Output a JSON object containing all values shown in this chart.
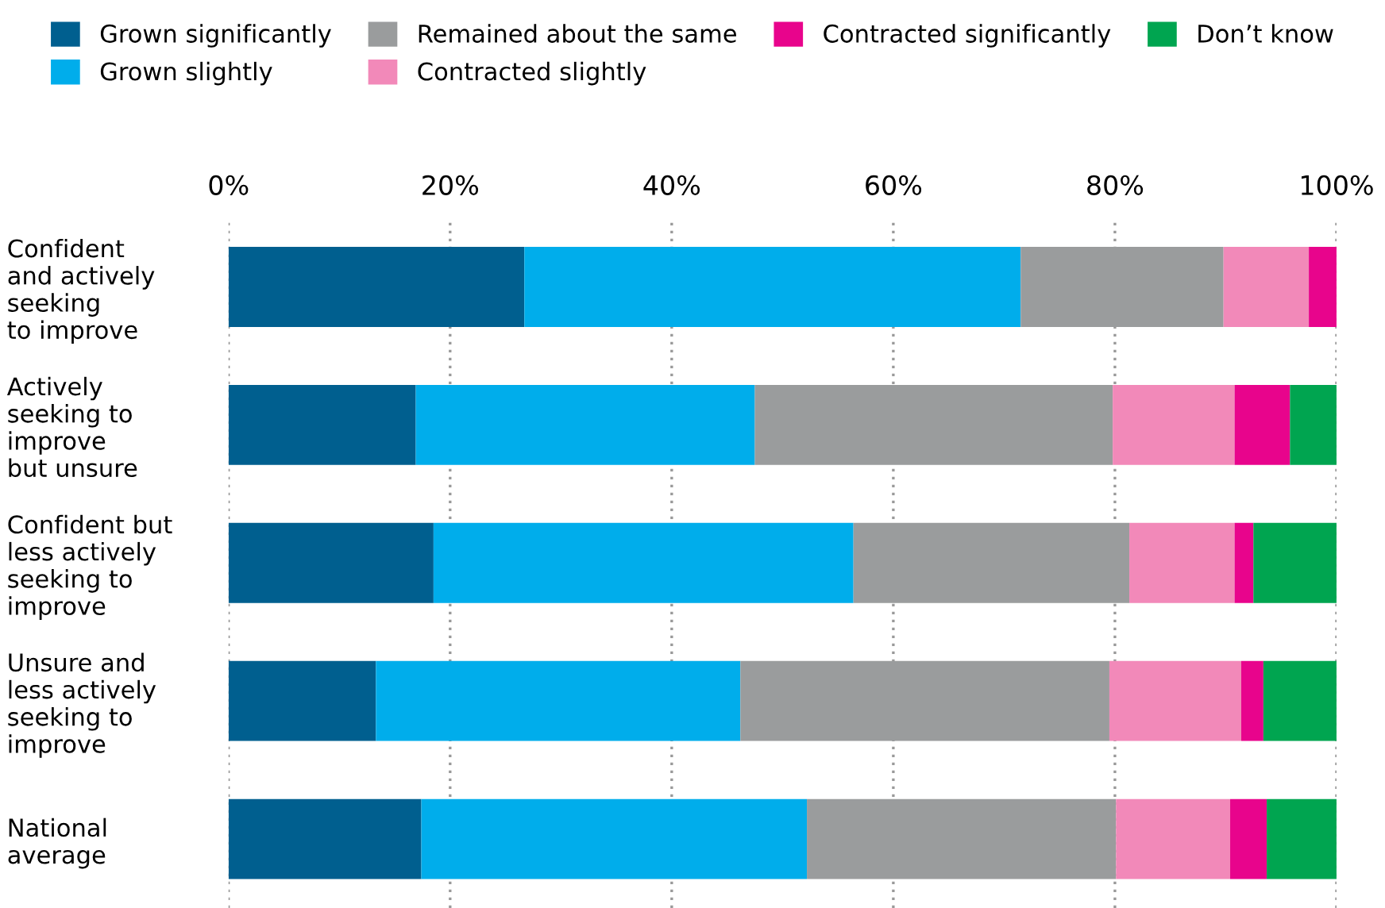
{
  "chart_data": {
    "type": "bar",
    "orientation": "horizontal",
    "stacked": true,
    "categories": [
      "Confident\nand actively\nseeking\nto improve",
      "Actively\nseeking to\nimprove\nbut unsure",
      "Confident but\nless actively\nseeking to\nimprove",
      "Unsure and\nless actively\nseeking to\nimprove",
      "National\naverage"
    ],
    "series": [
      {
        "name": "Grown significantly",
        "color": "#005f8f",
        "values": [
          26.7,
          16.9,
          18.5,
          13.3,
          17.4
        ]
      },
      {
        "name": "Grown slightly",
        "color": "#00adeb",
        "values": [
          44.8,
          30.6,
          37.9,
          32.9,
          34.8
        ]
      },
      {
        "name": "Remained about the same",
        "color": "#9a9c9d",
        "values": [
          18.3,
          32.3,
          24.9,
          33.3,
          27.9
        ]
      },
      {
        "name": "Contracted slightly",
        "color": "#f289b9",
        "values": [
          7.7,
          11.0,
          9.5,
          11.9,
          10.3
        ]
      },
      {
        "name": "Contracted significantly",
        "color": "#e8048c",
        "values": [
          2.5,
          5.0,
          1.7,
          2.0,
          3.3
        ]
      },
      {
        "name": "Don’t know",
        "color": "#00a550",
        "values": [
          0,
          4.2,
          7.5,
          6.6,
          6.3
        ]
      }
    ],
    "xlim": [
      0,
      100
    ],
    "xticks": [
      {
        "value": 0,
        "label": "0%"
      },
      {
        "value": 20,
        "label": "20%"
      },
      {
        "value": 40,
        "label": "40%"
      },
      {
        "value": 60,
        "label": "60%"
      },
      {
        "value": 80,
        "label": "80%"
      },
      {
        "value": 100,
        "label": "100%"
      }
    ],
    "grid": "x",
    "legend": "top"
  }
}
